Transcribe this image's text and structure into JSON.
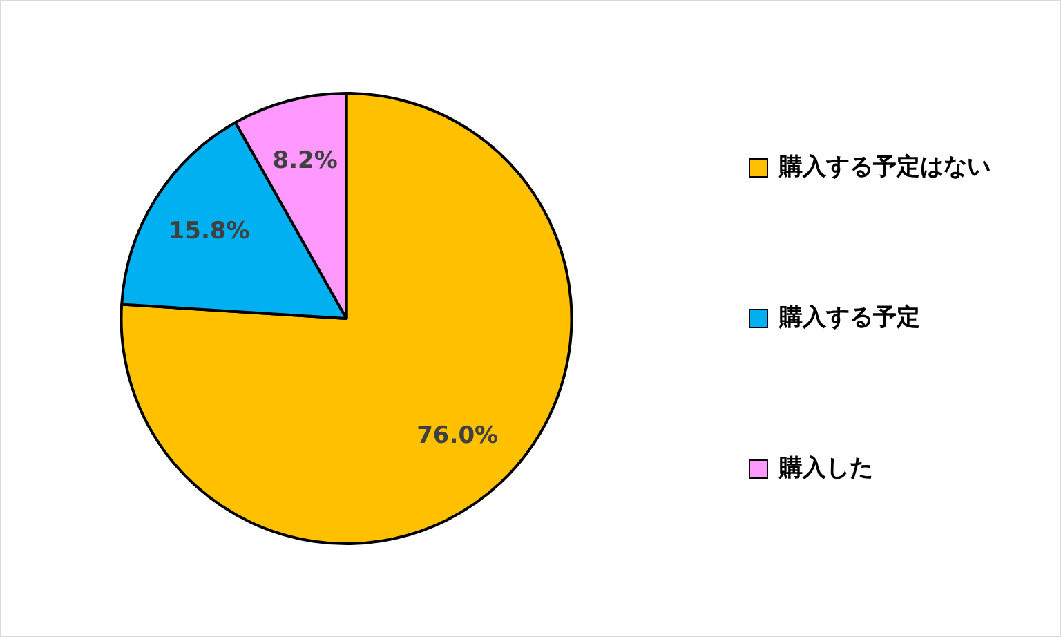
{
  "chart_data": {
    "type": "pie",
    "categories": [
      "購入する予定はない",
      "購入する予定",
      "購入した"
    ],
    "values": [
      76.0,
      15.8,
      8.2
    ],
    "colors": [
      "#ffc000",
      "#00b0f0",
      "#ff99ff"
    ],
    "value_labels": [
      "76.0%",
      "15.8%",
      "8.2%"
    ],
    "legend": "right"
  }
}
